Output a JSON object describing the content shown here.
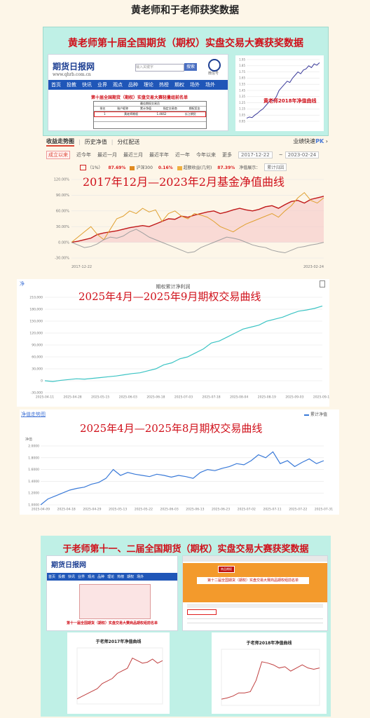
{
  "page": {
    "title": "黄老师和于老师获奖数据"
  },
  "panel1": {
    "heading": "黄老师第十届全国期货（期权）实盘交易大赛获奖数据",
    "site": {
      "logo_text": "期货日报网",
      "logo_domain": "www.qhrb.com.cn",
      "search_placeholder": "输入关键字",
      "search_button": "搜索",
      "qr_label": "微信号",
      "nav": [
        "首页",
        "投教",
        "快讯",
        "业界",
        "观点",
        "品种",
        "理论",
        "热榜",
        "期权",
        "场外",
        "场外"
      ],
      "table_caption": "第十届全国期货（期权）实盘交易大赛轻量组前名单",
      "table_header": "最佳期权交易员",
      "table_cols": [
        "排名",
        "账户昵称",
        "累计净值",
        "指定交易商",
        "期权奖金"
      ],
      "highlight_row": [
        "1",
        "黄老师期权",
        "1.4662",
        "长江期货"
      ]
    },
    "inset_chart": {
      "caption": "黄老师2018年净值曲线",
      "chart_data": {
        "type": "line",
        "y_ticks": [
          "1.95",
          "1.85",
          "1.75",
          "1.65",
          "1.55",
          "1.45",
          "1.35",
          "1.25",
          "1.15",
          "1.05",
          "0.95"
        ],
        "ylim": [
          0.95,
          1.95
        ],
        "values": [
          1.0,
          1.02,
          1.01,
          1.05,
          1.08,
          1.12,
          1.15,
          1.2,
          1.25,
          1.3,
          1.28,
          1.35,
          1.45,
          1.5,
          1.55,
          1.6,
          1.58,
          1.65,
          1.7,
          1.75,
          1.72,
          1.78,
          1.8,
          1.85,
          1.82,
          1.88,
          1.86,
          1.9
        ]
      }
    }
  },
  "toolbar": {
    "tabs": [
      "收益走势图",
      "历史净值",
      "分红配送"
    ],
    "active_tab": "收益走势图",
    "pk_text": "业绩快速",
    "pk_badge": "PK",
    "pk_arrow": "›",
    "filters": [
      "成立以来",
      "近今年",
      "最近一月",
      "最近三月",
      "最近半年",
      "近一年",
      "今年以来",
      "更多"
    ],
    "active_filter": "成立以来",
    "date_from": "2017-12-22",
    "date_to": "2023-02-24",
    "legend": [
      {
        "name": "（1%）",
        "value": "87.69%",
        "color": "#d02020"
      },
      {
        "name": "沪深300",
        "value": "0.16%",
        "color": "#e08a20"
      },
      {
        "name": "超额收益(几何)",
        "value": "87.39%",
        "color": "#f0b040"
      }
    ],
    "legend_tail": "净值展示：",
    "legend_mode": "累计归因"
  },
  "chart1": {
    "overlay": "2017年12月—2023年2月基金净值曲线",
    "chart_data": {
      "type": "line",
      "y_ticks": [
        "120.00%",
        "90.00%",
        "60.00%",
        "30.00%",
        "0.00%",
        "-30.00%"
      ],
      "ylim": [
        -30,
        120
      ],
      "x_ticks": [
        "2017-12-22",
        "2023-02-24"
      ],
      "series": [
        {
          "color": "#c01818",
          "values": [
            0,
            2,
            5,
            8,
            15,
            18,
            20,
            22,
            25,
            28,
            30,
            32,
            30,
            35,
            40,
            45,
            44,
            50,
            48,
            52,
            55,
            58,
            60,
            55,
            58,
            62,
            65,
            62,
            60,
            63,
            68,
            70,
            65,
            72,
            78,
            80,
            75,
            82,
            85,
            88
          ]
        },
        {
          "color": "#e0a030",
          "values": [
            0,
            10,
            20,
            30,
            15,
            5,
            25,
            45,
            50,
            60,
            55,
            65,
            58,
            62,
            40,
            55,
            60,
            50,
            45,
            55,
            52,
            48,
            40,
            30,
            25,
            20,
            28,
            35,
            40,
            45,
            50,
            55,
            48,
            60,
            70,
            85,
            95,
            80,
            75,
            85
          ]
        },
        {
          "color": "#a0a0a0",
          "values": [
            0,
            -5,
            -10,
            -8,
            -3,
            5,
            10,
            8,
            12,
            20,
            25,
            18,
            10,
            5,
            0,
            -5,
            -10,
            -15,
            -20,
            -18,
            -10,
            -5,
            0,
            5,
            10,
            8,
            5,
            0,
            -5,
            -8,
            -10,
            -15,
            -18,
            -20,
            -15,
            -10,
            -8,
            -5,
            -3,
            0
          ]
        }
      ]
    }
  },
  "chart2": {
    "legend_left": "净",
    "title": "期权累计净利润",
    "overlay": "2025年4月—2025年9月期权交易曲线",
    "chart_data": {
      "type": "line",
      "y_ticks": [
        "210,000",
        "180,000",
        "150,000",
        "120,000",
        "90,000",
        "60,000",
        "30,000",
        "0",
        "-30,000"
      ],
      "ylim": [
        -30000,
        210000
      ],
      "x_ticks": [
        "2025-04-11",
        "2025-04-28",
        "2025-05-15",
        "2025-06-03",
        "2025-06-18",
        "2025-07-03",
        "2025-07-18",
        "2025-08-04",
        "2025-08-19",
        "2025-09-03",
        "2025-09-18"
      ],
      "values": [
        0,
        -2000,
        1000,
        3000,
        5000,
        4000,
        6000,
        8000,
        10000,
        12000,
        15000,
        18000,
        20000,
        25000,
        30000,
        40000,
        45000,
        55000,
        60000,
        70000,
        80000,
        95000,
        100000,
        110000,
        120000,
        130000,
        135000,
        140000,
        150000,
        155000,
        160000,
        168000,
        175000,
        178000,
        182000,
        188000
      ]
    }
  },
  "chart3": {
    "legend_left": "净值走势图",
    "y_label": "净值",
    "legend_right": "累计净值",
    "overlay": "2025年4月—2025年8月期权交易曲线",
    "chart_data": {
      "type": "line",
      "y_ticks": [
        "2.0000",
        "1.8000",
        "1.6000",
        "1.4000",
        "1.2000",
        "1.0000"
      ],
      "ylim": [
        1.0,
        2.0
      ],
      "x_ticks": [
        "2025-04-09",
        "2025-04-18",
        "2025-04-29",
        "2025-05-13",
        "2025-05-22",
        "2025-06-03",
        "2025-06-13",
        "2025-06-23",
        "2025-07-02",
        "2025-07-11",
        "2025-07-22",
        "2025-07-31"
      ],
      "values": [
        1.0,
        1.1,
        1.15,
        1.2,
        1.25,
        1.28,
        1.3,
        1.35,
        1.38,
        1.45,
        1.6,
        1.5,
        1.55,
        1.52,
        1.5,
        1.48,
        1.52,
        1.5,
        1.47,
        1.5,
        1.48,
        1.45,
        1.55,
        1.6,
        1.58,
        1.62,
        1.65,
        1.7,
        1.68,
        1.75,
        1.85,
        1.8,
        1.9,
        1.7,
        1.75,
        1.65,
        1.72,
        1.78,
        1.7,
        1.75
      ]
    }
  },
  "panel5": {
    "heading": "于老师第十一、二届全国期货（期权）实盘交易大赛获奖数据",
    "site_logo": "期货日报网",
    "site_nav": [
      "首页",
      "投教",
      "快讯",
      "业界",
      "观点",
      "品种",
      "理论",
      "热榜",
      "期权",
      "场外"
    ],
    "left_caption": "第十一届全国期货（期权）实盘交易大赛商品期权组前名单",
    "right_caption": "第十二届全国期货（期权）实盘交易大赛商品期权组前名单",
    "right_tag": "商品期权",
    "chart_left_caption": "于老师2017年净值曲线",
    "chart_right_caption": "于老师2018年净值曲线",
    "chart_left": {
      "chart_data": {
        "type": "line",
        "values": [
          1.0,
          1.05,
          1.1,
          1.15,
          1.2,
          1.3,
          1.35,
          1.4,
          1.5,
          1.55,
          1.6,
          1.8,
          1.75,
          1.7,
          1.72,
          1.78,
          1.7,
          1.75
        ]
      }
    },
    "chart_right": {
      "chart_data": {
        "type": "line",
        "values": [
          1.0,
          1.02,
          1.05,
          1.1,
          1.1,
          1.12,
          1.3,
          1.6,
          1.58,
          1.55,
          1.5,
          1.52,
          1.45,
          1.5,
          1.55,
          1.5,
          1.48,
          1.5
        ]
      }
    }
  }
}
